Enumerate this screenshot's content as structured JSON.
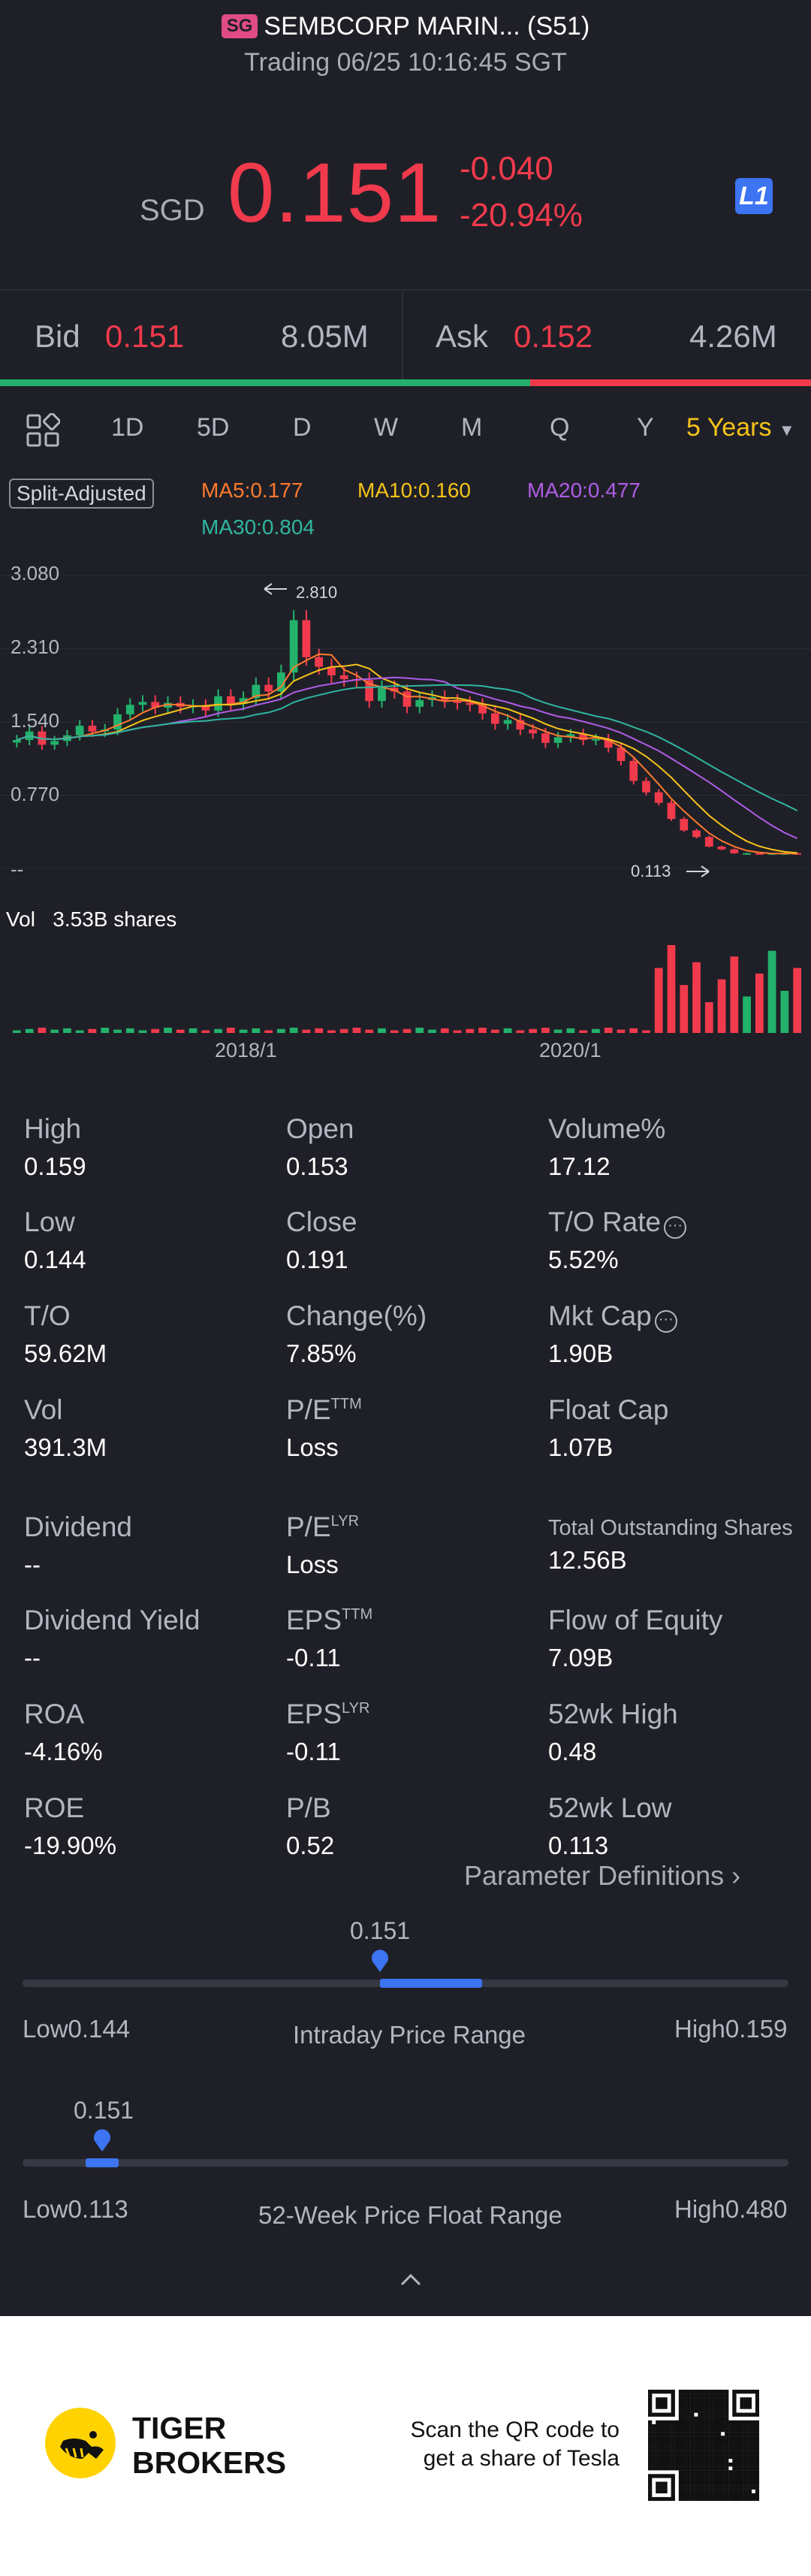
{
  "header": {
    "market_badge": "SG",
    "title": "SEMBCORP MARIN... (S51)",
    "status": "Trading 06/25 10:16:45 SGT"
  },
  "quote": {
    "currency": "SGD",
    "price": "0.151",
    "change": "-0.040",
    "change_pct": "-20.94%",
    "level_icon": "L1",
    "down_color": "#f23a4d",
    "up_color": "#23b26b"
  },
  "bidask": {
    "bid_label": "Bid",
    "bid_price": "0.151",
    "bid_size": "8.05M",
    "ask_label": "Ask",
    "ask_price": "0.152",
    "ask_size": "4.26M",
    "bid_share": 0.654
  },
  "tabs": [
    "1D",
    "5D",
    "D",
    "W",
    "M",
    "Q",
    "Y"
  ],
  "active_tab": "5 Years",
  "chart_legend": {
    "split_adjusted": "Split-Adjusted",
    "ma5": "MA5:0.177",
    "ma10": "MA10:0.160",
    "ma20": "MA20:0.477",
    "ma30": "MA30:0.804",
    "colors": {
      "ma5": "#ff7a2e",
      "ma10": "#f5c319",
      "ma20": "#b05ce8",
      "ma30": "#2fb6a0"
    }
  },
  "chart_data": {
    "type": "candlestick",
    "y_ticks": [
      "3.080",
      "2.310",
      "1.540",
      "0.770",
      "--"
    ],
    "ylim": [
      0,
      3.08
    ],
    "x_ticks": [
      "2018/1",
      "2020/1"
    ],
    "annotations": {
      "high": "2.810",
      "low": "0.113"
    },
    "volume_label": "Vol",
    "volume_value": "3.53B shares",
    "closes": [
      1.35,
      1.44,
      1.3,
      1.34,
      1.4,
      1.5,
      1.44,
      1.46,
      1.62,
      1.72,
      1.75,
      1.69,
      1.74,
      1.7,
      1.71,
      1.66,
      1.81,
      1.73,
      1.79,
      1.93,
      1.86,
      2.06,
      2.61,
      2.22,
      2.12,
      2.03,
      1.99,
      1.98,
      1.76,
      1.9,
      1.86,
      1.7,
      1.77,
      1.8,
      1.76,
      1.74,
      1.72,
      1.63,
      1.52,
      1.56,
      1.46,
      1.42,
      1.32,
      1.38,
      1.41,
      1.35,
      1.36,
      1.27,
      1.13,
      0.92,
      0.8,
      0.69,
      0.52,
      0.4,
      0.33,
      0.23,
      0.2,
      0.16,
      0.16,
      0.15,
      0.16,
      0.16,
      0.151
    ]
  },
  "stats": [
    {
      "label": "High",
      "value": "0.159"
    },
    {
      "label": "Open",
      "value": "0.153"
    },
    {
      "label": "Volume%",
      "value": "17.12"
    },
    {
      "label": "Low",
      "value": "0.144"
    },
    {
      "label": "Close",
      "value": "0.191"
    },
    {
      "label": "T/O Rate",
      "value": "5.52%"
    },
    {
      "label": "T/O",
      "value": "59.62M"
    },
    {
      "label": "Change(%)",
      "value": "7.85%"
    },
    {
      "label": "Mkt Cap",
      "value": "1.90B"
    },
    {
      "label": "Vol",
      "value": "391.3M"
    },
    {
      "label": "P/E",
      "sup": "TTM",
      "value": "Loss"
    },
    {
      "label": "Float Cap",
      "value": "1.07B"
    },
    {
      "label": "Dividend",
      "value": "--"
    },
    {
      "label": "P/E",
      "sup": "LYR",
      "value": "Loss"
    },
    {
      "label": "Total Outstanding Shares",
      "value": "12.56B"
    },
    {
      "label": "Dividend Yield",
      "value": "--"
    },
    {
      "label": "EPS",
      "sup": "TTM",
      "value": "-0.11"
    },
    {
      "label": "Flow of Equity",
      "value": "7.09B"
    },
    {
      "label": "ROA",
      "value": "-4.16%"
    },
    {
      "label": "EPS",
      "sup": "LYR",
      "value": "-0.11"
    },
    {
      "label": "52wk High",
      "value": "0.48"
    },
    {
      "label": "ROE",
      "value": "-19.90%"
    },
    {
      "label": "P/B",
      "value": "0.52"
    },
    {
      "label": "52wk Low",
      "value": "0.113"
    }
  ],
  "param_definitions": "Parameter Definitions",
  "intraday_range": {
    "title": "Intraday Price Range",
    "current": "0.151",
    "low_label": "Low0.144",
    "high_label": "High0.159",
    "marker_fraction": 0.467
  },
  "week52_range": {
    "title": "52-Week Price Float Range",
    "current": "0.151",
    "low_label": "Low0.113",
    "high_label": "High0.480",
    "marker_fraction": 0.104
  },
  "footer": {
    "brand_line1": "TIGER",
    "brand_line2": "BROKERS",
    "qr_line1": "Scan the QR code to",
    "qr_line2": "get a share of Tesla"
  }
}
